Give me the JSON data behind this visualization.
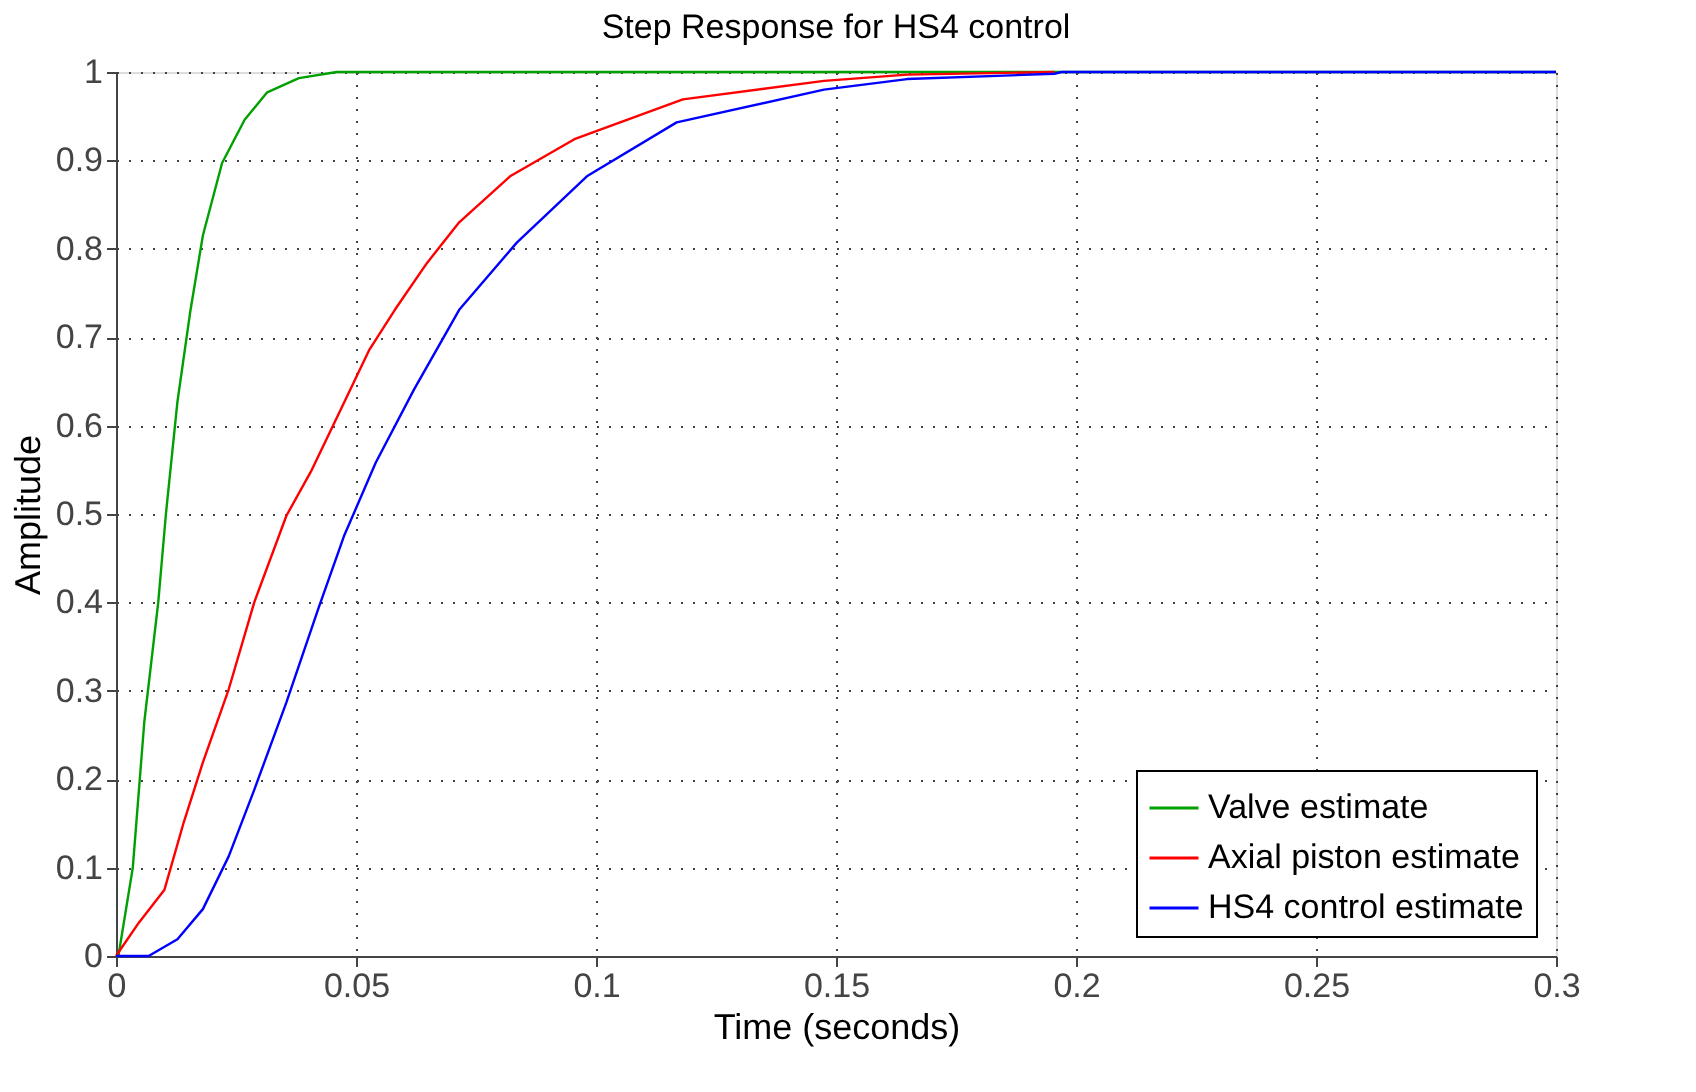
{
  "chart_data": {
    "type": "line",
    "title": "Step Response for HS4 control",
    "xlabel": "Time (seconds)",
    "ylabel": "Amplitude",
    "xlim": [
      0,
      0.3
    ],
    "ylim": [
      0,
      1
    ],
    "xticks": [
      0,
      0.05,
      0.1,
      0.15,
      0.2,
      0.25,
      0.3
    ],
    "yticks": [
      0,
      0.1,
      0.2,
      0.3,
      0.4,
      0.5,
      0.6,
      0.7,
      0.8,
      0.9,
      1
    ],
    "grid": true,
    "legend": "bottom right",
    "line_style": "solid",
    "marker": "none",
    "series": [
      {
        "name": "Valve estimate",
        "color": "#00a000",
        "x": [
          0,
          0.0005,
          0.0035,
          0.0059,
          0.0088,
          0.0104,
          0.0128,
          0.0155,
          0.0181,
          0.0221,
          0.0268,
          0.0315,
          0.0381,
          0.046,
          0.3
        ],
        "values": [
          0,
          0,
          0.1,
          0.265,
          0.4,
          0.5,
          0.627,
          0.73,
          0.815,
          0.897,
          0.946,
          0.977,
          0.993,
          1,
          1
        ]
      },
      {
        "name": "Axial piston estimate",
        "color": "#ff0000",
        "x": [
          0,
          0.0048,
          0.0101,
          0.0141,
          0.0181,
          0.0235,
          0.0288,
          0.0355,
          0.0408,
          0.0468,
          0.0528,
          0.0581,
          0.0648,
          0.0715,
          0.0821,
          0.0955,
          0.1181,
          0.1475,
          0.1648,
          0.1955
        ],
        "values": [
          0,
          0.038,
          0.075,
          0.151,
          0.219,
          0.302,
          0.4,
          0.498,
          0.55,
          0.618,
          0.686,
          0.731,
          0.784,
          0.83,
          0.882,
          0.924,
          0.969,
          0.99,
          0.997,
          1
        ]
      },
      {
        "name": "HS4 control estimate",
        "color": "#0000ff",
        "x": [
          0,
          0.0068,
          0.0128,
          0.0181,
          0.0235,
          0.0288,
          0.0355,
          0.0421,
          0.0475,
          0.0541,
          0.0621,
          0.0715,
          0.0835,
          0.0981,
          0.1168,
          0.1475,
          0.1648,
          0.1955,
          0.197,
          0.3
        ],
        "values": [
          0,
          0,
          0.019,
          0.053,
          0.113,
          0.188,
          0.287,
          0.392,
          0.475,
          0.558,
          0.641,
          0.731,
          0.807,
          0.882,
          0.943,
          0.98,
          0.992,
          0.998,
          1,
          1
        ]
      }
    ]
  }
}
